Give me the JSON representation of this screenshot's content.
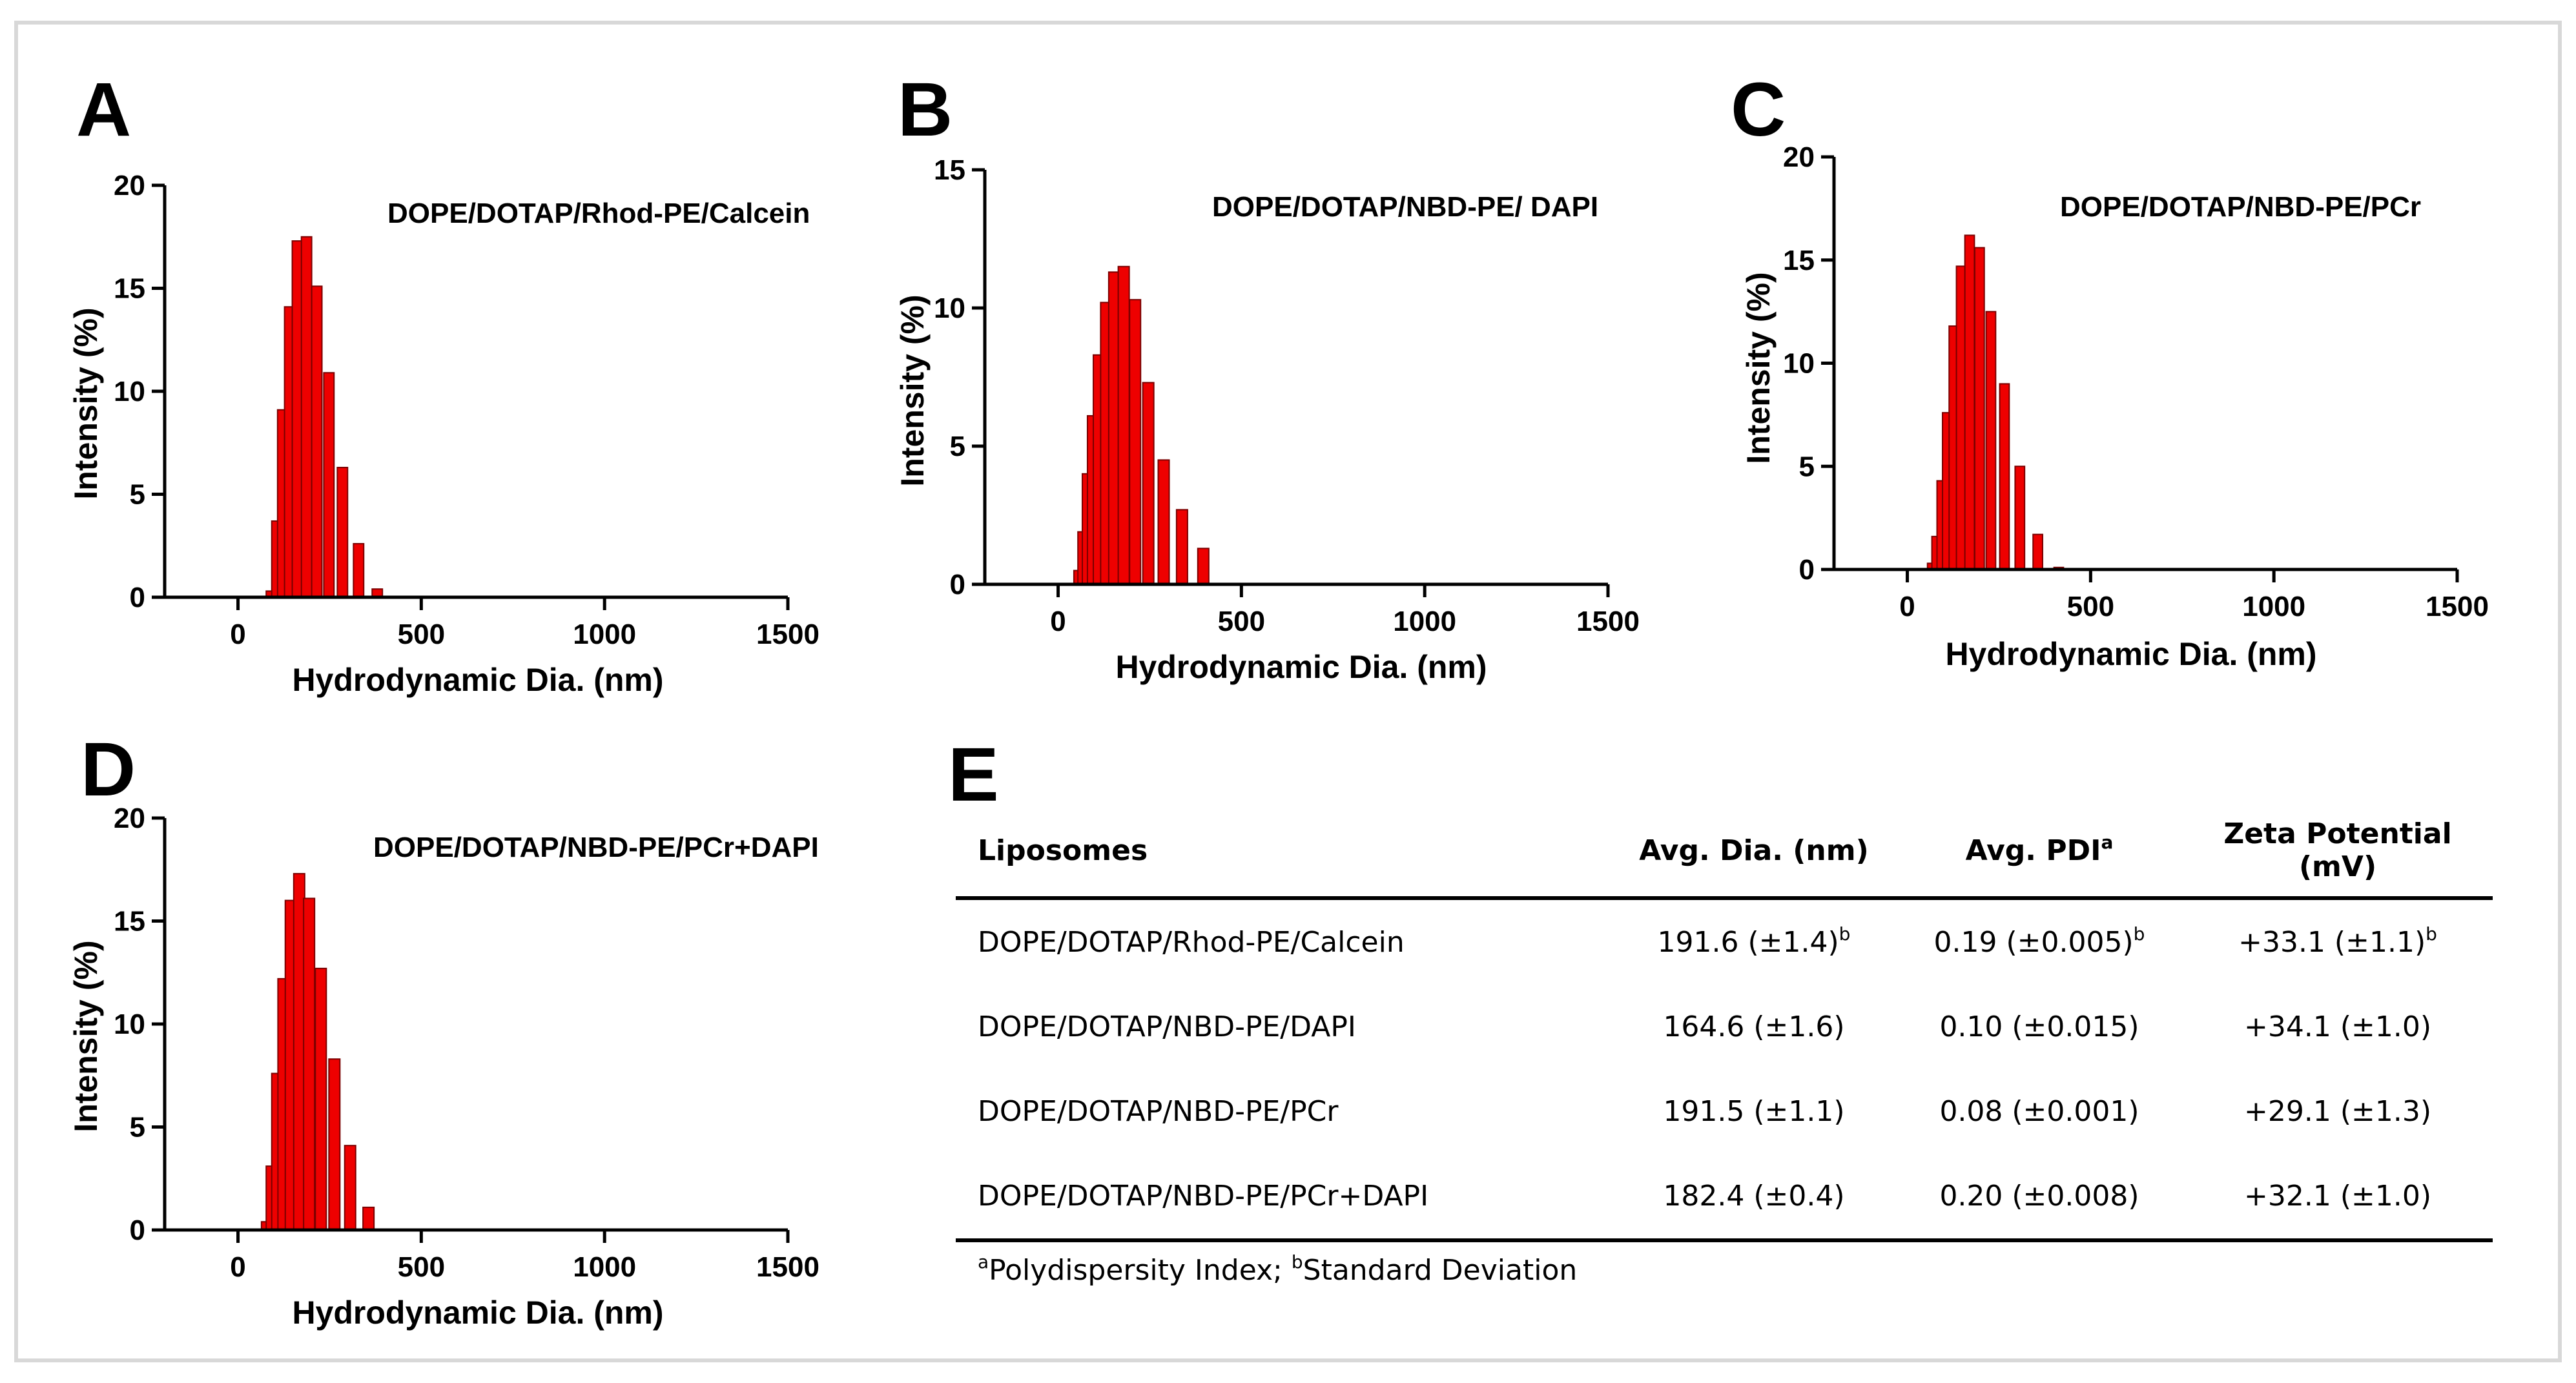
{
  "colors": {
    "bar_fill": "#ee0000",
    "bar_stroke": "#7a0000",
    "frame": "#d8d8d8"
  },
  "panels": {
    "E": {
      "letter": "E"
    }
  },
  "table": {
    "headers": {
      "liposomes": "Liposomes",
      "avg_dia": "Avg. Dia. (nm)",
      "avg_pdi": "Avg. PDI",
      "avg_pdi_sup": "a",
      "zeta": "Zeta Potential (mV)"
    },
    "rows": [
      {
        "name": "DOPE/DOTAP/Rhod-PE/Calcein",
        "dia": "191.6 (±1.4)",
        "dia_sup": "b",
        "pdi": "0.19 (±0.005)",
        "pdi_sup": "b",
        "zeta": "+33.1 (±1.1)",
        "zeta_sup": "b"
      },
      {
        "name": "DOPE/DOTAP/NBD-PE/DAPI",
        "dia": "164.6 (±1.6)",
        "pdi": "0.10 (±0.015)",
        "zeta": "+34.1 (±1.0)"
      },
      {
        "name": "DOPE/DOTAP/NBD-PE/PCr",
        "dia": "191.5 (±1.1)",
        "pdi": "0.08 (±0.001)",
        "zeta": "+29.1 (±1.3)"
      },
      {
        "name": "DOPE/DOTAP/NBD-PE/PCr+DAPI",
        "dia": "182.4 (±0.4)",
        "pdi": "0.20 (±0.008)",
        "zeta": "+32.1 (±1.0)"
      }
    ],
    "footnote": {
      "sup_a": "a",
      "text_a": "Polydispersity Index; ",
      "sup_b": "b",
      "text_b": "Standard Deviation"
    }
  },
  "chart_data": [
    {
      "panel": "A",
      "type": "bar",
      "title": "DOPE/DOTAP/Rhod-PE/Calcein",
      "xlabel": "Hydrodynamic  Dia. (nm)",
      "ylabel": "Intensity  (%)",
      "xlim": [
        -200,
        1500
      ],
      "ylim": [
        0,
        20
      ],
      "xticks": [
        0,
        500,
        1000,
        1500
      ],
      "yticks": [
        0,
        5,
        10,
        15,
        20
      ],
      "bin_width": 28,
      "x": [
        91,
        106,
        122,
        141,
        162,
        187,
        215,
        248,
        285,
        329,
        380,
        438,
        504
      ],
      "values": [
        0.3,
        3.7,
        9.1,
        14.1,
        17.3,
        17.5,
        15.1,
        10.9,
        6.3,
        2.6,
        0.4,
        0,
        0
      ]
    },
    {
      "panel": "B",
      "type": "bar",
      "title": "DOPE/DOTAP/NBD-PE/ DAPI",
      "xlabel": "Hydrodynamic  Dia. (nm)",
      "ylabel": "Intensity  (%)",
      "xlim": [
        -200,
        1500
      ],
      "ylim": [
        0,
        15
      ],
      "xticks": [
        0,
        500,
        1000,
        1500
      ],
      "yticks": [
        0,
        5,
        10,
        15
      ],
      "bin_width": 30,
      "x": [
        58,
        69,
        81,
        95,
        111,
        131,
        153,
        179,
        210,
        246,
        288,
        338,
        396,
        463
      ],
      "values": [
        0.5,
        1.9,
        4.0,
        6.1,
        8.3,
        10.2,
        11.3,
        11.5,
        10.3,
        7.3,
        4.5,
        2.7,
        1.3,
        0
      ]
    },
    {
      "panel": "C",
      "type": "bar",
      "title": "DOPE/DOTAP/NBD-PE/PCr",
      "xlabel": "Hydrodynamic  Dia. (nm)",
      "ylabel": "Intensity  (%)",
      "xlim": [
        -200,
        1500
      ],
      "ylim": [
        0,
        20
      ],
      "xticks": [
        0,
        500,
        1000,
        1500
      ],
      "yticks": [
        0,
        5,
        10,
        15,
        20
      ],
      "bin_width": 26,
      "x": [
        68,
        80,
        94,
        109,
        127,
        147,
        170,
        197,
        228,
        265,
        307,
        356,
        413
      ],
      "values": [
        0.3,
        1.6,
        4.3,
        7.6,
        11.8,
        14.7,
        16.2,
        15.6,
        12.5,
        9.0,
        5.0,
        1.7,
        0.1
      ]
    },
    {
      "panel": "D",
      "type": "bar",
      "title": "DOPE/DOTAP/NBD-PE/PCr+DAPI",
      "xlabel": "Hydrodynamic  Dia. (nm)",
      "ylabel": "Intensity  (%)",
      "xlim": [
        -200,
        1500
      ],
      "ylim": [
        0,
        20
      ],
      "xticks": [
        0,
        500,
        1000,
        1500
      ],
      "yticks": [
        0,
        5,
        10,
        15,
        20
      ],
      "bin_width": 30,
      "x": [
        79,
        92,
        107,
        124,
        144,
        167,
        194,
        226,
        263,
        306,
        356,
        414
      ],
      "values": [
        0.4,
        3.1,
        7.6,
        12.2,
        16.0,
        17.3,
        16.1,
        12.7,
        8.3,
        4.1,
        1.1,
        0
      ]
    }
  ]
}
